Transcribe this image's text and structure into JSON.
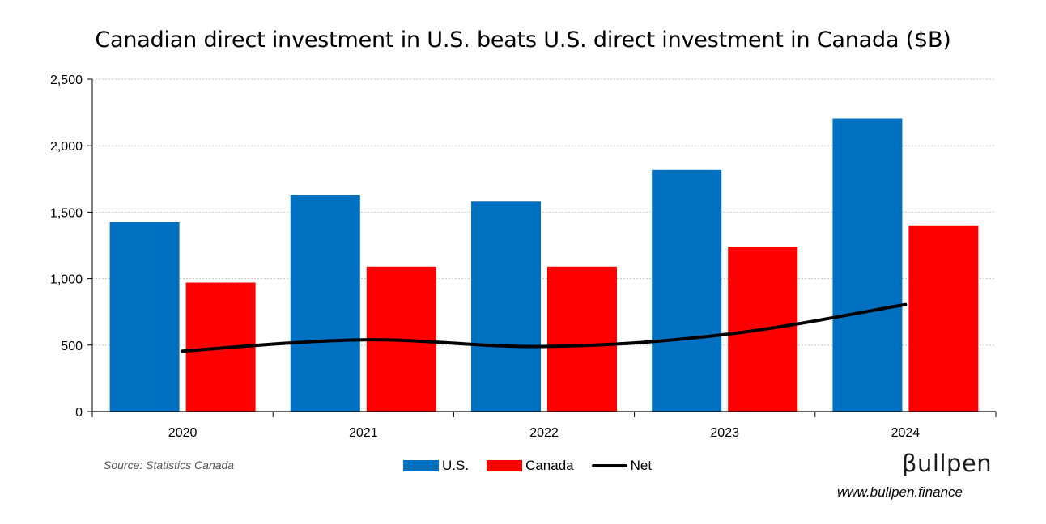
{
  "chart_data": {
    "type": "bar",
    "title": "Canadian direct investment in U.S. beats U.S. direct investment in Canada ($B)",
    "categories": [
      "2020",
      "2021",
      "2022",
      "2023",
      "2024"
    ],
    "series": [
      {
        "name": "U.S.",
        "type": "bar",
        "color": "#0070C0",
        "values": [
          1425,
          1630,
          1580,
          1820,
          2205
        ]
      },
      {
        "name": "Canada",
        "type": "bar",
        "color": "#FF0000",
        "values": [
          970,
          1090,
          1090,
          1240,
          1400
        ]
      },
      {
        "name": "Net",
        "type": "line",
        "color": "#000000",
        "values": [
          455,
          540,
          490,
          580,
          805
        ]
      }
    ],
    "ylim": [
      0,
      2500
    ],
    "yticks": [
      0,
      500,
      1000,
      1500,
      2000,
      2500
    ],
    "ytick_labels": [
      "0",
      "500",
      "1,000",
      "1,500",
      "2,000",
      "2,500"
    ],
    "grid": true,
    "legend_position": "bottom-center"
  },
  "source_note": "Source: Statistics Canada",
  "brand": {
    "logo": "βullpen",
    "url": "www.bullpen.finance"
  }
}
